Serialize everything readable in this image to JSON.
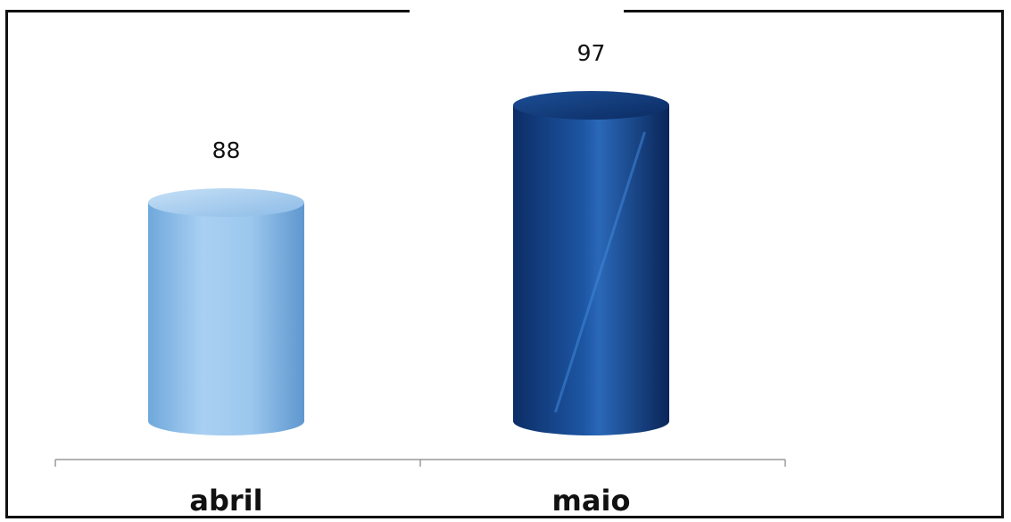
{
  "chart_data": {
    "type": "bar",
    "title": "",
    "categories": [
      "abril",
      "maio"
    ],
    "series": [
      {
        "values": [
          88,
          97
        ]
      }
    ],
    "data_labels": [
      "88",
      "97"
    ],
    "ylim": [
      80,
      97
    ],
    "grid": false,
    "legend": "none",
    "colors": {
      "abril": "#8ec0ea",
      "maio": "#1a4a8e"
    }
  }
}
